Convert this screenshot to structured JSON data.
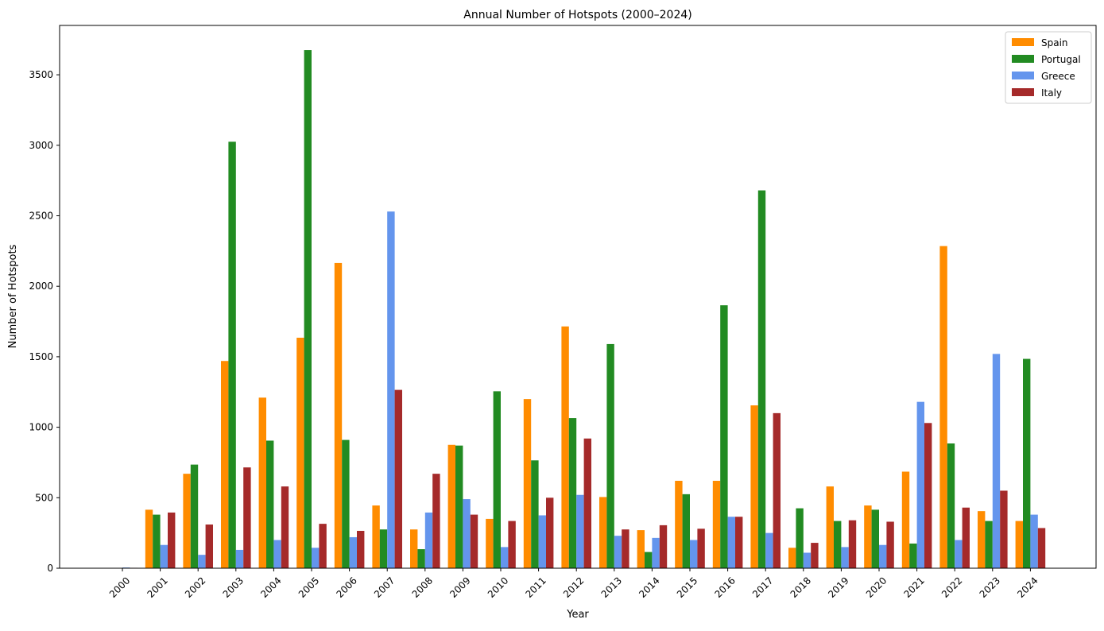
{
  "chart_data": {
    "type": "bar",
    "title": "Annual Number of Hotspots (2000–2024)",
    "xlabel": "Year",
    "ylabel": "Number of Hotspots",
    "ylim": [
      0,
      3850
    ],
    "yticks": [
      "0",
      "500",
      "1000",
      "1500",
      "2000",
      "2500",
      "3000",
      "3500"
    ],
    "ytick_values": [
      0,
      500,
      1000,
      1500,
      2000,
      2500,
      3000,
      3500
    ],
    "categories": [
      "2000",
      "2001",
      "2002",
      "2003",
      "2004",
      "2005",
      "2006",
      "2007",
      "2008",
      "2009",
      "2010",
      "2011",
      "2012",
      "2013",
      "2014",
      "2015",
      "2016",
      "2017",
      "2018",
      "2019",
      "2020",
      "2021",
      "2022",
      "2023",
      "2024"
    ],
    "grid": false,
    "legend_position": "top-right",
    "series": [
      {
        "name": "Spain",
        "color": "#ff8c00",
        "values": [
          2,
          415,
          670,
          1470,
          1210,
          1635,
          2165,
          445,
          275,
          875,
          350,
          1200,
          1715,
          505,
          270,
          620,
          620,
          1155,
          145,
          580,
          445,
          685,
          2285,
          405,
          335
        ]
      },
      {
        "name": "Portugal",
        "color": "#228b22",
        "values": [
          0,
          380,
          735,
          3025,
          905,
          3675,
          910,
          275,
          135,
          870,
          1255,
          765,
          1065,
          1590,
          115,
          525,
          1865,
          2680,
          425,
          335,
          415,
          175,
          885,
          335,
          1485
        ]
      },
      {
        "name": "Greece",
        "color": "#6495ed",
        "values": [
          5,
          165,
          95,
          130,
          200,
          145,
          220,
          2530,
          395,
          490,
          150,
          375,
          520,
          230,
          215,
          200,
          365,
          250,
          110,
          150,
          165,
          1180,
          200,
          1520,
          380
        ]
      },
      {
        "name": "Italy",
        "color": "#a52a2a",
        "values": [
          3,
          395,
          310,
          715,
          580,
          315,
          265,
          1265,
          670,
          380,
          335,
          500,
          920,
          275,
          305,
          280,
          365,
          1100,
          180,
          340,
          330,
          1030,
          430,
          550,
          285
        ]
      }
    ]
  }
}
